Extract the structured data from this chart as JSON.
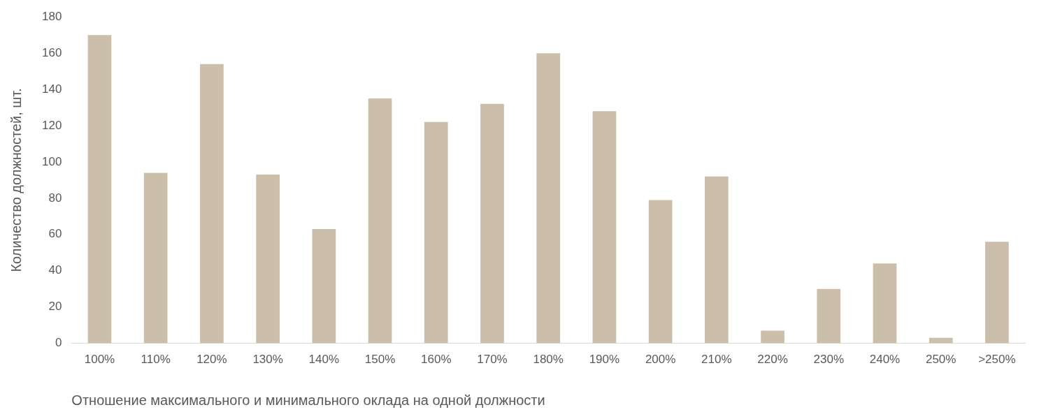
{
  "chart_data": {
    "type": "bar",
    "xlabel": "Отношение максимального и минимального оклада на одной должности",
    "ylabel": "Количество должностей, шт.",
    "categories": [
      "100%",
      "110%",
      "120%",
      "130%",
      "140%",
      "150%",
      "160%",
      "170%",
      "180%",
      "190%",
      "200%",
      "210%",
      "220%",
      "230%",
      "240%",
      "250%",
      ">250%"
    ],
    "values": [
      170,
      94,
      154,
      93,
      63,
      135,
      122,
      132,
      160,
      128,
      79,
      92,
      7,
      30,
      44,
      3,
      56
    ],
    "color": "#cbbeab",
    "ylim": [
      0,
      180
    ],
    "yticks": [
      0,
      20,
      40,
      60,
      80,
      100,
      120,
      140,
      160,
      180
    ],
    "grid": false,
    "legend": false
  }
}
